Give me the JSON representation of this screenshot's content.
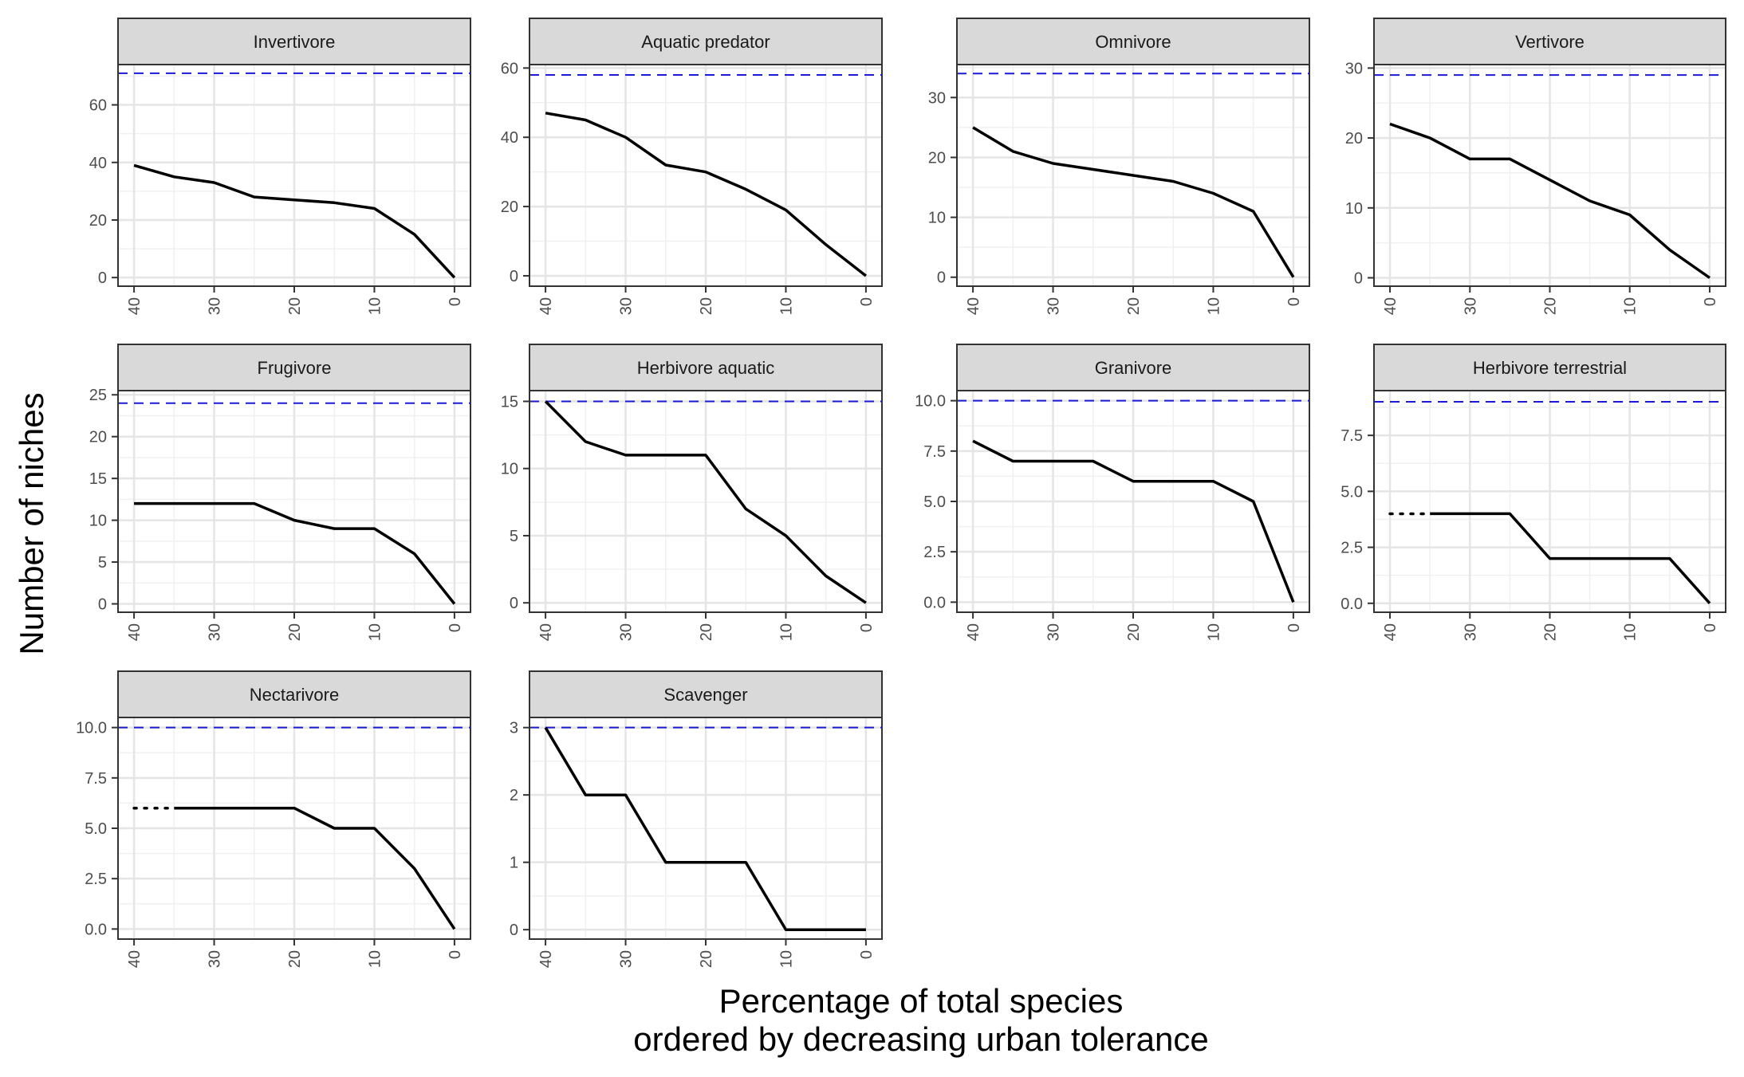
{
  "figure": {
    "ylabel": "Number of niches",
    "xlabel_lines": [
      "Percentage of total species",
      "ordered by decreasing urban tolerance"
    ]
  },
  "colors": {
    "strip_fill": "#d9d9d9",
    "strip_border": "#333333",
    "line": "#000000",
    "reference": "#1a1ad9",
    "grid_major": "#e5e5e5",
    "grid_minor": "#f0f0f0"
  },
  "chart_data": [
    {
      "type": "line",
      "title": "Invertivore",
      "x": [
        40,
        35,
        30,
        25,
        20,
        15,
        10,
        5,
        0
      ],
      "y": [
        39,
        35,
        33,
        28,
        27,
        26,
        24,
        15,
        0
      ],
      "reference_y": 71,
      "ylim": [
        -3,
        74
      ],
      "yticks": [
        0,
        20,
        40,
        60
      ],
      "xticks": [
        40,
        30,
        20,
        10,
        0
      ],
      "xlim": [
        42,
        -2
      ]
    },
    {
      "type": "line",
      "title": "Aquatic predator",
      "x": [
        40,
        35,
        30,
        25,
        20,
        15,
        10,
        5,
        0
      ],
      "y": [
        47,
        45,
        40,
        32,
        30,
        25,
        19,
        9,
        0
      ],
      "reference_y": 58,
      "ylim": [
        -3,
        61
      ],
      "yticks": [
        0,
        20,
        40,
        60
      ],
      "xticks": [
        40,
        30,
        20,
        10,
        0
      ],
      "xlim": [
        42,
        -2
      ]
    },
    {
      "type": "line",
      "title": "Omnivore",
      "x": [
        40,
        35,
        30,
        25,
        20,
        15,
        10,
        5,
        0
      ],
      "y": [
        25,
        21,
        19,
        18,
        17,
        16,
        14,
        11,
        0
      ],
      "reference_y": 34,
      "ylim": [
        -1.5,
        35.5
      ],
      "yticks": [
        0,
        10,
        20,
        30
      ],
      "xticks": [
        40,
        30,
        20,
        10,
        0
      ],
      "xlim": [
        42,
        -2
      ]
    },
    {
      "type": "line",
      "title": "Vertivore",
      "x": [
        40,
        35,
        30,
        25,
        20,
        15,
        10,
        5,
        0
      ],
      "y": [
        22,
        20,
        17,
        17,
        14,
        11,
        9,
        4,
        0
      ],
      "reference_y": 29,
      "ylim": [
        -1.2,
        30.5
      ],
      "yticks": [
        0,
        10,
        20,
        30
      ],
      "xticks": [
        40,
        30,
        20,
        10,
        0
      ],
      "xlim": [
        42,
        -2
      ]
    },
    {
      "type": "line",
      "title": "Frugivore",
      "x": [
        40,
        35,
        30,
        25,
        20,
        15,
        10,
        5,
        0
      ],
      "y": [
        12,
        12,
        12,
        12,
        10,
        9,
        9,
        6,
        0
      ],
      "reference_y": 24,
      "ylim": [
        -1,
        25.5
      ],
      "yticks": [
        0,
        5,
        10,
        15,
        20,
        25
      ],
      "xticks": [
        40,
        30,
        20,
        10,
        0
      ],
      "xlim": [
        42,
        -2
      ]
    },
    {
      "type": "line",
      "title": "Herbivore aquatic",
      "x": [
        40,
        35,
        30,
        25,
        20,
        15,
        10,
        5,
        0
      ],
      "y": [
        15,
        12,
        11,
        11,
        11,
        7,
        5,
        2,
        0
      ],
      "reference_y": 15,
      "ylim": [
        -0.7,
        15.8
      ],
      "yticks": [
        0,
        5,
        10,
        15
      ],
      "xticks": [
        40,
        30,
        20,
        10,
        0
      ],
      "xlim": [
        42,
        -2
      ]
    },
    {
      "type": "line",
      "title": "Granivore",
      "x": [
        40,
        35,
        30,
        25,
        20,
        15,
        10,
        5,
        0
      ],
      "y": [
        8,
        7,
        7,
        7,
        6,
        6,
        6,
        5,
        0
      ],
      "reference_y": 10,
      "ylim": [
        -0.5,
        10.5
      ],
      "yticks": [
        0,
        2.5,
        5,
        7.5,
        10
      ],
      "ytick_labels": [
        "0.0",
        "2.5",
        "5.0",
        "7.5",
        "10.0"
      ],
      "xticks": [
        40,
        30,
        20,
        10,
        0
      ],
      "xlim": [
        42,
        -2
      ]
    },
    {
      "type": "line",
      "title": "Herbivore terrestrial",
      "x": [
        35,
        30,
        25,
        20,
        15,
        10,
        5,
        0
      ],
      "y": [
        4,
        4,
        4,
        2,
        2,
        2,
        2,
        0
      ],
      "dotted_segment": {
        "x": [
          40,
          35
        ],
        "y": [
          4,
          4
        ]
      },
      "reference_y": 9,
      "ylim": [
        -0.4,
        9.5
      ],
      "yticks": [
        0,
        2.5,
        5,
        7.5
      ],
      "ytick_labels": [
        "0.0",
        "2.5",
        "5.0",
        "7.5"
      ],
      "xticks": [
        40,
        30,
        20,
        10,
        0
      ],
      "xlim": [
        42,
        -2
      ]
    },
    {
      "type": "line",
      "title": "Nectarivore",
      "x": [
        35,
        30,
        25,
        20,
        15,
        10,
        5,
        0
      ],
      "y": [
        6,
        6,
        6,
        6,
        5,
        5,
        3,
        0
      ],
      "dotted_segment": {
        "x": [
          40,
          35
        ],
        "y": [
          6,
          6
        ]
      },
      "reference_y": 10,
      "ylim": [
        -0.5,
        10.5
      ],
      "yticks": [
        0,
        2.5,
        5,
        7.5,
        10
      ],
      "ytick_labels": [
        "0.0",
        "2.5",
        "5.0",
        "7.5",
        "10.0"
      ],
      "xticks": [
        40,
        30,
        20,
        10,
        0
      ],
      "xlim": [
        42,
        -2
      ]
    },
    {
      "type": "line",
      "title": "Scavenger",
      "x": [
        40,
        35,
        30,
        25,
        20,
        15,
        10,
        5,
        0
      ],
      "y": [
        3,
        2,
        2,
        1,
        1,
        1,
        0,
        0,
        0
      ],
      "reference_y": 3,
      "ylim": [
        -0.14,
        3.15
      ],
      "yticks": [
        0,
        1,
        2,
        3
      ],
      "xticks": [
        40,
        30,
        20,
        10,
        0
      ],
      "xlim": [
        42,
        -2
      ]
    }
  ]
}
